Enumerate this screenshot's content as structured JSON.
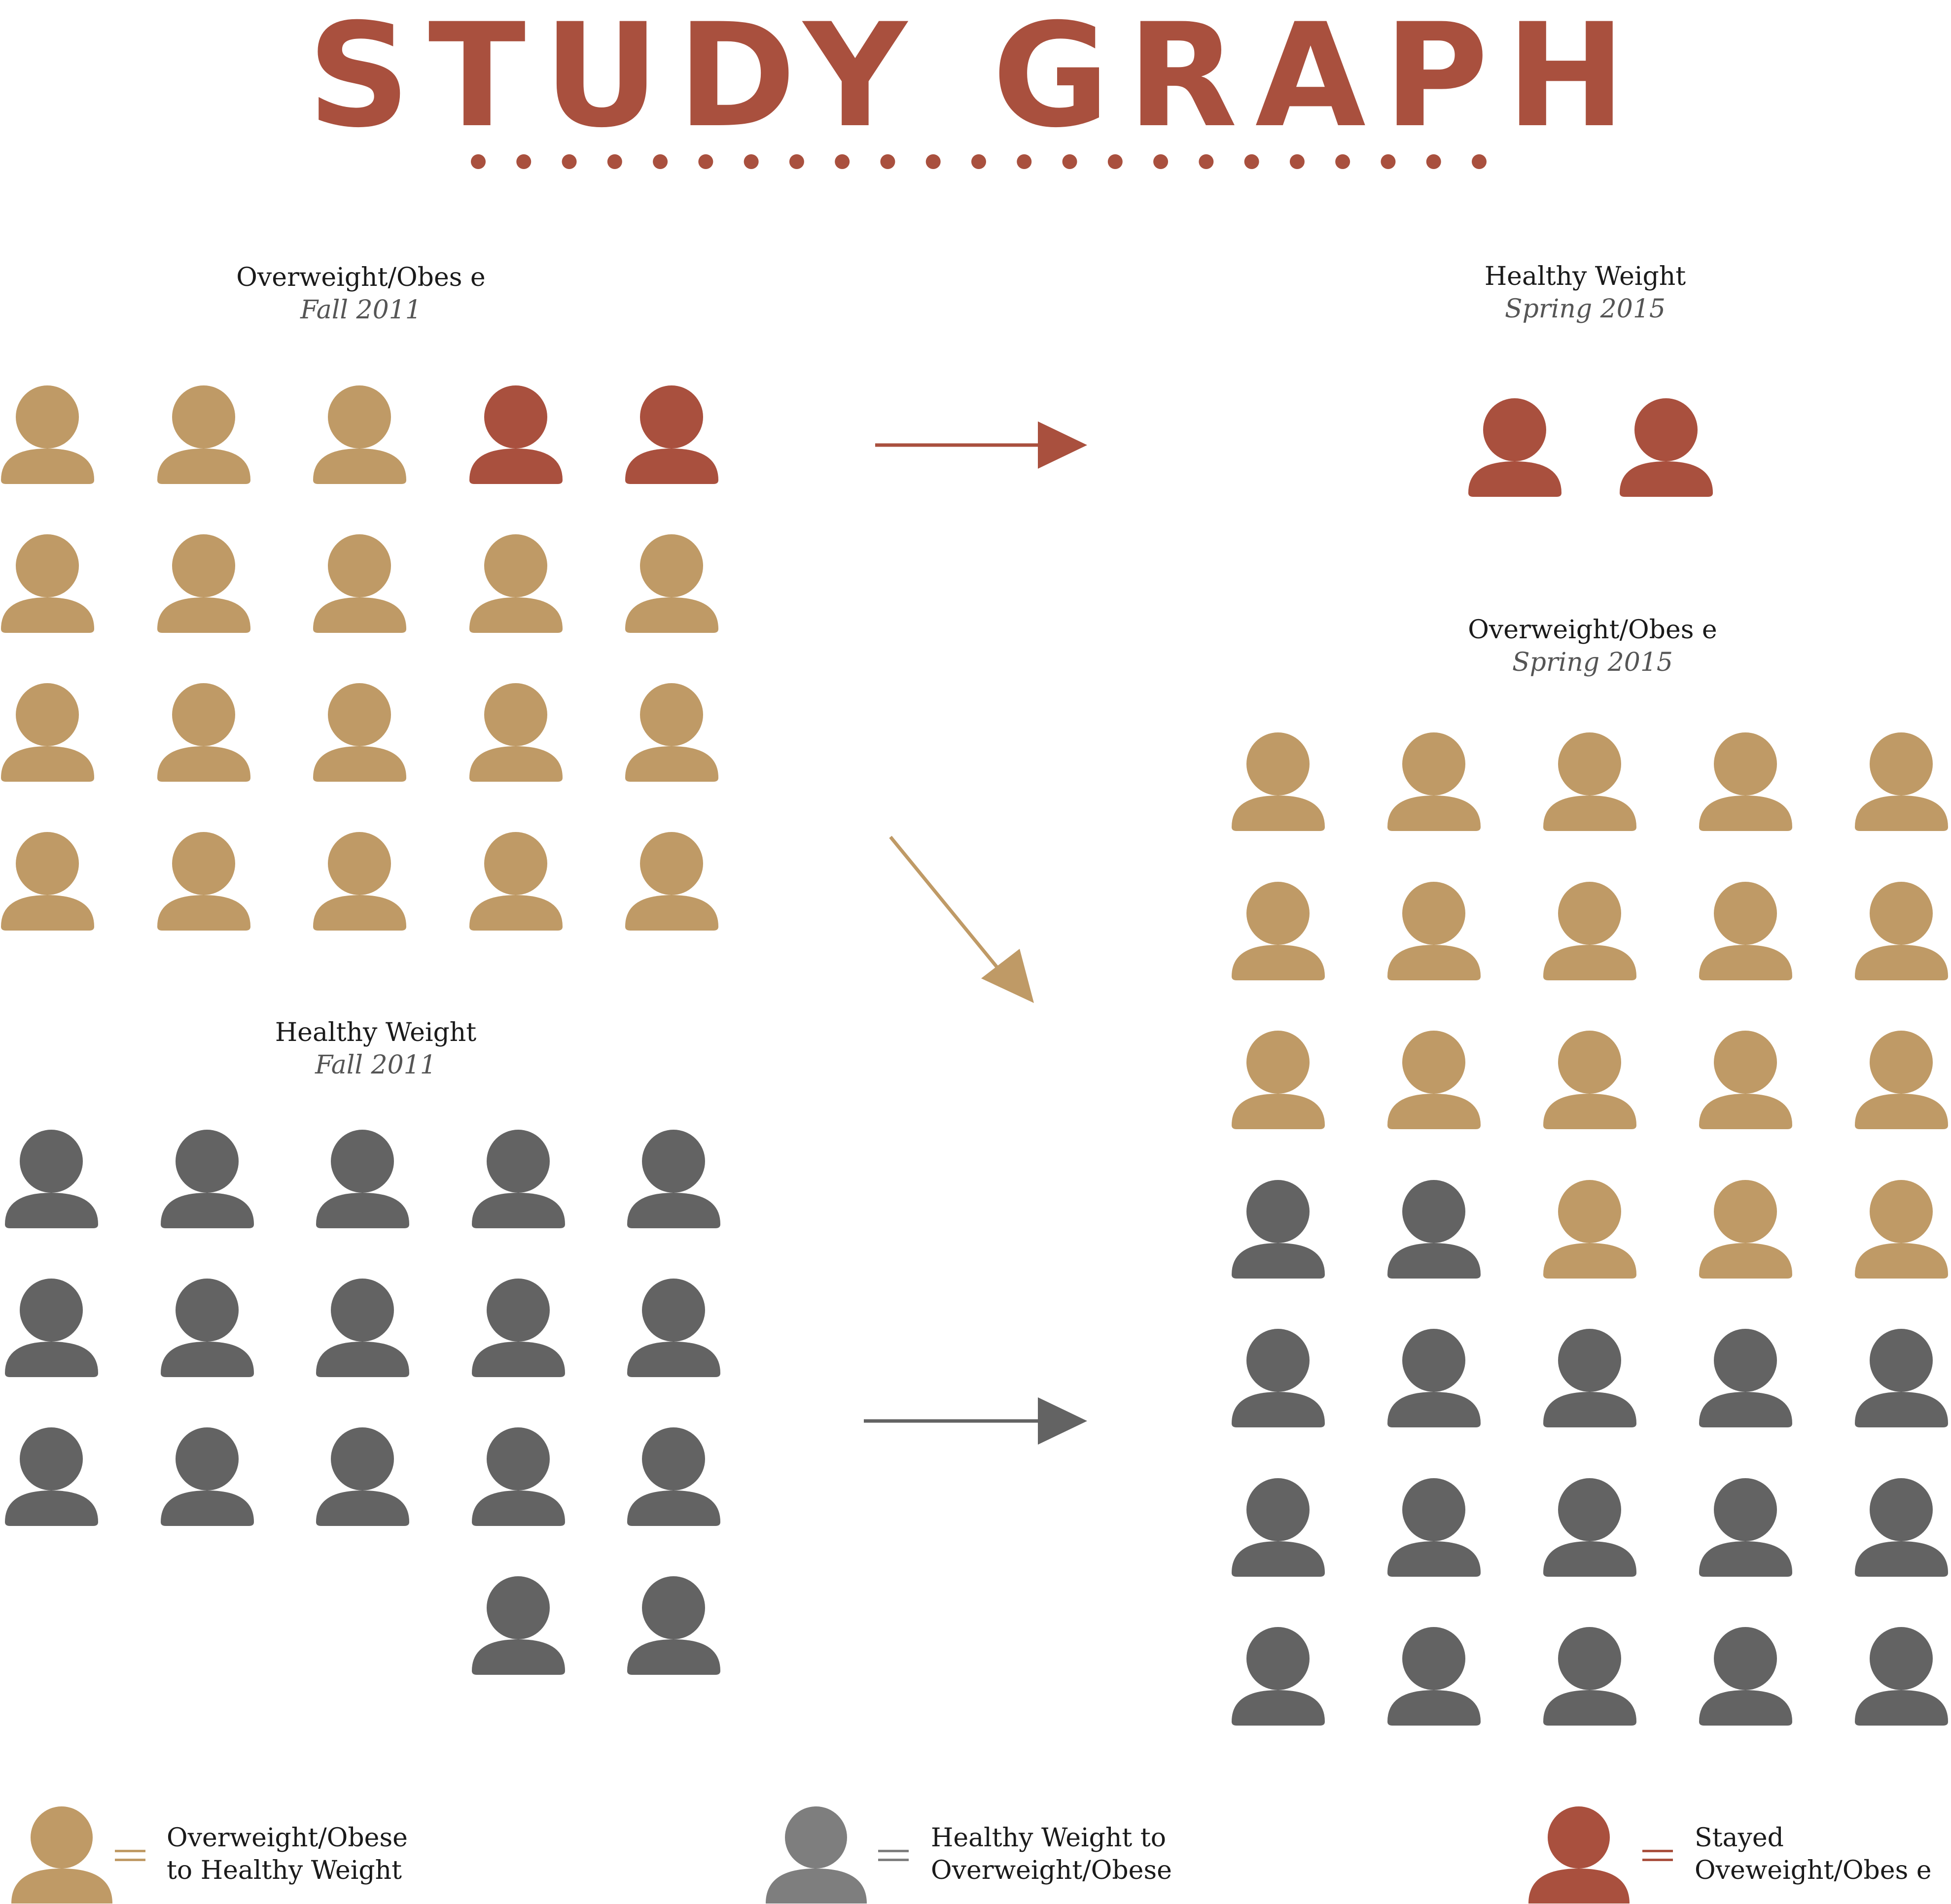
{
  "title": "STUDY GRAPH",
  "colors": {
    "tan": "#bf9a66",
    "red": "#a9503e",
    "gray": "#636363",
    "legend_gray": "#7e7e7e",
    "title": "#a9503e"
  },
  "groups": {
    "ow_fall": {
      "label": "Overweight/Obes e",
      "period": "Fall 2011",
      "rows": [
        [
          "tan",
          "tan",
          "tan",
          "red",
          "red"
        ],
        [
          "tan",
          "tan",
          "tan",
          "tan",
          "tan"
        ],
        [
          "tan",
          "tan",
          "tan",
          "tan",
          "tan"
        ],
        [
          "tan",
          "tan",
          "tan",
          "tan",
          "tan"
        ]
      ]
    },
    "hw_fall": {
      "label": "Healthy Weight",
      "period": "Fall 2011",
      "rows": [
        [
          "gray",
          "gray",
          "gray",
          "gray",
          "gray"
        ],
        [
          "gray",
          "gray",
          "gray",
          "gray",
          "gray"
        ],
        [
          "gray",
          "gray",
          "gray",
          "gray",
          "gray"
        ],
        [
          "",
          "",
          "",
          "gray",
          "gray"
        ]
      ]
    },
    "hw_spring": {
      "label": "Healthy Weight",
      "period": "Spring 2015",
      "rows": [
        [
          "red",
          "red"
        ]
      ]
    },
    "ow_spring": {
      "label": "Overweight/Obes e",
      "period": "Spring 2015",
      "rows": [
        [
          "tan",
          "tan",
          "tan",
          "tan",
          "tan"
        ],
        [
          "tan",
          "tan",
          "tan",
          "tan",
          "tan"
        ],
        [
          "tan",
          "tan",
          "tan",
          "tan",
          "tan"
        ],
        [
          "gray",
          "gray",
          "tan",
          "tan",
          "tan"
        ],
        [
          "gray",
          "gray",
          "gray",
          "gray",
          "gray"
        ],
        [
          "gray",
          "gray",
          "gray",
          "gray",
          "gray"
        ],
        [
          "gray",
          "gray",
          "gray",
          "gray",
          "gray"
        ]
      ]
    }
  },
  "legend": [
    {
      "color": "tan",
      "lines": [
        "Overweight/Obese",
        "to Healthy Weight"
      ]
    },
    {
      "color": "legend_gray",
      "lines": [
        "Healthy Weight to",
        "Overweight/Obese"
      ]
    },
    {
      "color": "red",
      "lines": [
        "Stayed",
        "Oveweight/Obes e"
      ]
    }
  ]
}
